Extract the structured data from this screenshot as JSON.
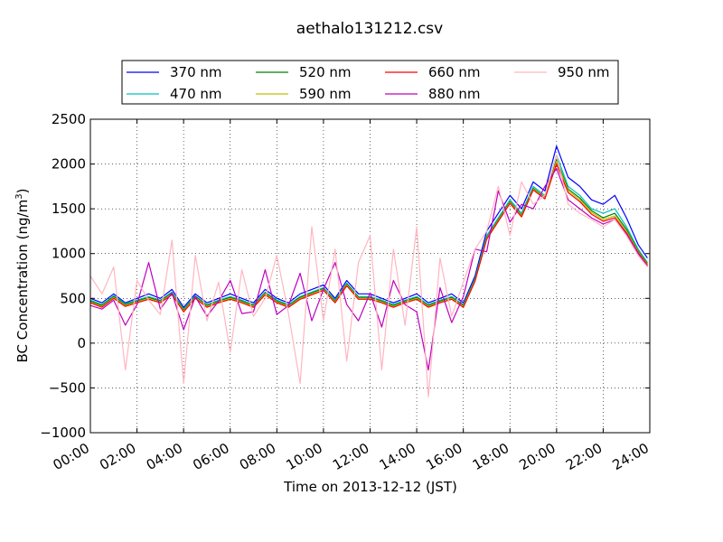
{
  "chart_data": {
    "type": "line",
    "title": "aethalo131212.csv",
    "xlabel": "Time on 2013-12-12 (JST)",
    "ylabel": "BC Concentration (ng/m",
    "ylabel_sup": "3",
    "ylabel_end": ")",
    "xlim": [
      0,
      24
    ],
    "ylim": [
      -1000,
      2500
    ],
    "grid": true,
    "legend_position": "top",
    "xticks": [
      {
        "v": 0,
        "label": "00:00"
      },
      {
        "v": 2,
        "label": "02:00"
      },
      {
        "v": 4,
        "label": "04:00"
      },
      {
        "v": 6,
        "label": "06:00"
      },
      {
        "v": 8,
        "label": "08:00"
      },
      {
        "v": 10,
        "label": "10:00"
      },
      {
        "v": 12,
        "label": "12:00"
      },
      {
        "v": 14,
        "label": "14:00"
      },
      {
        "v": 16,
        "label": "16:00"
      },
      {
        "v": 18,
        "label": "18:00"
      },
      {
        "v": 20,
        "label": "20:00"
      },
      {
        "v": 22,
        "label": "22:00"
      },
      {
        "v": 24,
        "label": "24:00"
      }
    ],
    "yticks": [
      {
        "v": -1000,
        "label": "−1000"
      },
      {
        "v": -500,
        "label": "−500"
      },
      {
        "v": 0,
        "label": "0"
      },
      {
        "v": 500,
        "label": "500"
      },
      {
        "v": 1000,
        "label": "1000"
      },
      {
        "v": 1500,
        "label": "1500"
      },
      {
        "v": 2000,
        "label": "2000"
      },
      {
        "v": 2500,
        "label": "2500"
      }
    ],
    "x": [
      0.0,
      0.5,
      1.0,
      1.5,
      2.0,
      2.5,
      3.0,
      3.5,
      4.0,
      4.5,
      5.0,
      5.5,
      6.0,
      6.5,
      7.0,
      7.5,
      8.0,
      8.5,
      9.0,
      9.5,
      10.0,
      10.5,
      11.0,
      11.5,
      12.0,
      12.5,
      13.0,
      13.5,
      14.0,
      14.5,
      15.0,
      15.5,
      16.0,
      16.5,
      17.0,
      17.5,
      18.0,
      18.5,
      19.0,
      19.5,
      20.0,
      20.5,
      21.0,
      21.5,
      22.0,
      22.5,
      23.0,
      23.5,
      23.9
    ],
    "series": [
      {
        "name": "370 nm",
        "color": "#0000ff",
        "values": [
          500,
          450,
          550,
          450,
          500,
          550,
          500,
          600,
          400,
          550,
          450,
          500,
          550,
          500,
          450,
          600,
          500,
          450,
          550,
          600,
          650,
          500,
          700,
          550,
          550,
          500,
          450,
          500,
          550,
          450,
          500,
          550,
          450,
          750,
          1250,
          1450,
          1650,
          1500,
          1800,
          1700,
          2200,
          1850,
          1750,
          1600,
          1550,
          1650,
          1400,
          1100,
          950
        ]
      },
      {
        "name": "470 nm",
        "color": "#00bfbf",
        "values": [
          480,
          430,
          530,
          440,
          480,
          520,
          480,
          570,
          380,
          530,
          430,
          480,
          520,
          480,
          430,
          570,
          480,
          430,
          520,
          570,
          620,
          480,
          670,
          520,
          520,
          480,
          430,
          480,
          520,
          430,
          480,
          520,
          430,
          720,
          1200,
          1400,
          1600,
          1450,
          1750,
          1650,
          2100,
          1750,
          1650,
          1500,
          1450,
          1500,
          1300,
          1050,
          900
        ]
      },
      {
        "name": "520 nm",
        "color": "#008000",
        "values": [
          470,
          420,
          520,
          430,
          470,
          510,
          470,
          560,
          370,
          520,
          420,
          470,
          510,
          470,
          420,
          560,
          470,
          420,
          510,
          560,
          610,
          470,
          660,
          510,
          510,
          470,
          420,
          470,
          510,
          420,
          470,
          510,
          420,
          710,
          1180,
          1380,
          1580,
          1430,
          1730,
          1630,
          2050,
          1720,
          1620,
          1480,
          1400,
          1450,
          1270,
          1030,
          890
        ]
      },
      {
        "name": "590 nm",
        "color": "#bfbf00",
        "values": [
          460,
          410,
          510,
          420,
          460,
          500,
          460,
          550,
          360,
          510,
          410,
          460,
          500,
          460,
          410,
          550,
          460,
          410,
          500,
          550,
          600,
          460,
          650,
          500,
          500,
          460,
          410,
          460,
          500,
          410,
          460,
          500,
          410,
          700,
          1170,
          1370,
          1570,
          1420,
          1720,
          1620,
          2030,
          1700,
          1600,
          1460,
          1380,
          1420,
          1250,
          1020,
          880
        ]
      },
      {
        "name": "660 nm",
        "color": "#ff0000",
        "values": [
          450,
          400,
          500,
          410,
          450,
          490,
          450,
          540,
          350,
          500,
          400,
          450,
          490,
          450,
          400,
          540,
          450,
          400,
          490,
          540,
          590,
          450,
          640,
          490,
          490,
          450,
          400,
          450,
          490,
          400,
          450,
          490,
          400,
          690,
          1160,
          1360,
          1560,
          1410,
          1710,
          1610,
          2000,
          1680,
          1580,
          1440,
          1360,
          1400,
          1230,
          1010,
          870
        ]
      },
      {
        "name": "880 nm",
        "color": "#bf00bf",
        "values": [
          420,
          380,
          480,
          200,
          430,
          900,
          380,
          560,
          150,
          520,
          300,
          470,
          700,
          330,
          350,
          820,
          320,
          420,
          780,
          250,
          600,
          900,
          430,
          250,
          560,
          180,
          700,
          430,
          350,
          -300,
          620,
          230,
          520,
          1050,
          1020,
          1700,
          1350,
          1550,
          1500,
          1750,
          1950,
          1600,
          1500,
          1400,
          1330,
          1380,
          1220,
          1000,
          860
        ]
      },
      {
        "name": "950 nm",
        "color": "#ffb6c1",
        "values": [
          750,
          550,
          850,
          -300,
          700,
          480,
          320,
          1150,
          -450,
          980,
          250,
          680,
          -100,
          820,
          300,
          500,
          980,
          330,
          -450,
          1300,
          250,
          1050,
          -200,
          900,
          1200,
          -300,
          1050,
          200,
          1300,
          -600,
          950,
          300,
          680,
          1050,
          1250,
          1750,
          1200,
          1800,
          1550,
          1650,
          2100,
          1550,
          1450,
          1380,
          1300,
          1380,
          1200,
          980,
          850
        ]
      }
    ]
  }
}
